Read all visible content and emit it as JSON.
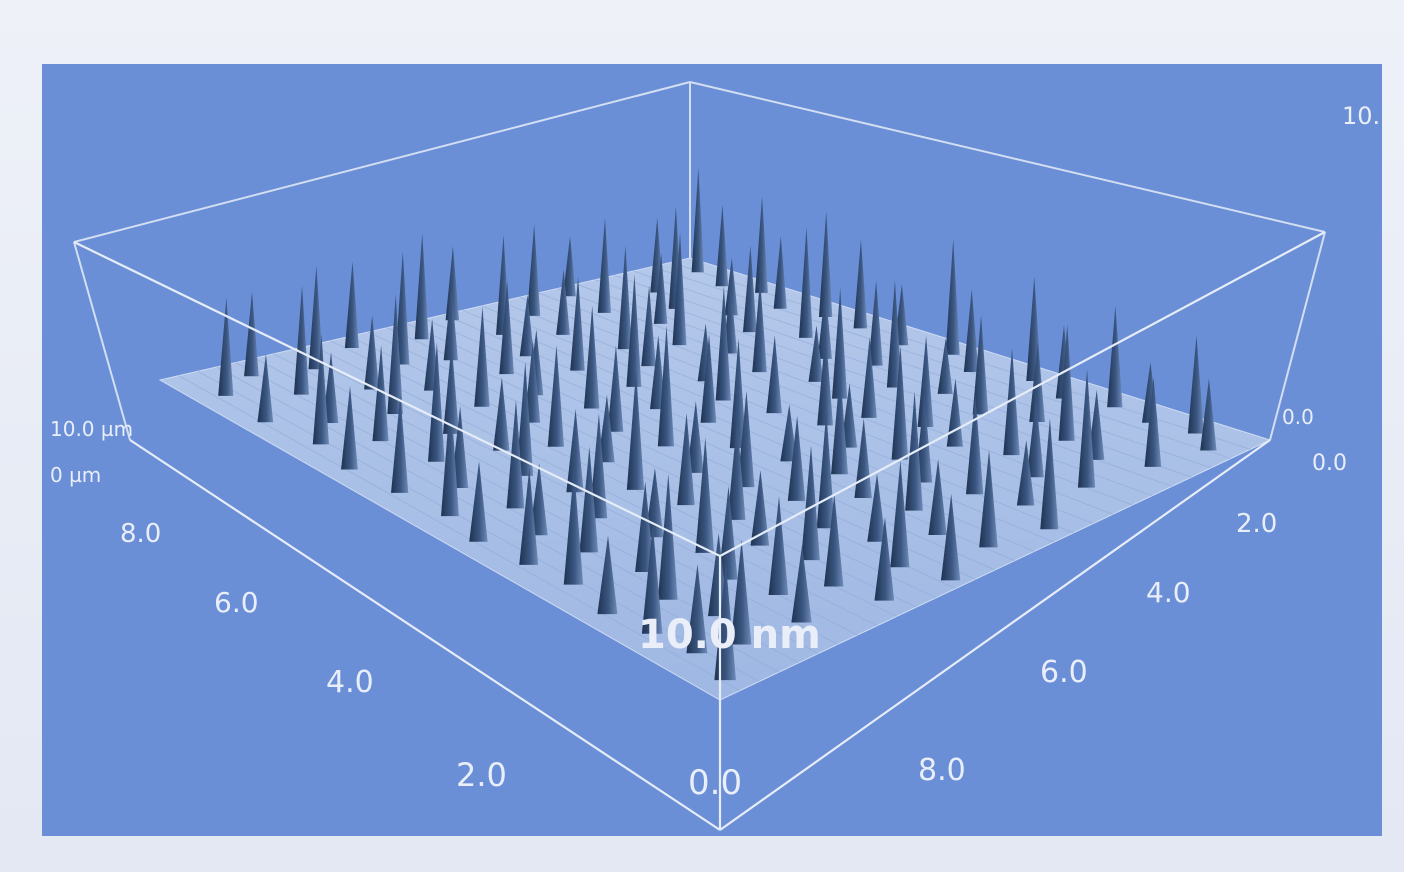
{
  "chart_data": {
    "type": "surface3d",
    "title": "",
    "colors": {
      "panel": "#6a8fd6",
      "floor": "#a7bfe6",
      "spike": "#2b4266",
      "frame_line": "#e6ecf8"
    },
    "z_axis": {
      "top_label": "10.",
      "scale_bar_label": "10.0 nm",
      "range": [
        0,
        10
      ]
    },
    "x_axis": {
      "range": [
        0,
        10
      ],
      "origin_label": "0.0",
      "tick_labels": [
        "2.0",
        "4.0",
        "6.0",
        "8.0"
      ],
      "end_labels": [
        "10.0 µm",
        "0 µm"
      ]
    },
    "y_axis": {
      "range": [
        0,
        10
      ],
      "tick_labels": [
        "2.0",
        "4.0",
        "6.0",
        "8.0"
      ],
      "end_labels": [
        "0.0",
        "0.0"
      ]
    },
    "peaks": [
      {
        "x": 0.5,
        "y": 9.6,
        "h": 9.2
      },
      {
        "x": 1.1,
        "y": 9.4,
        "h": 7.1
      },
      {
        "x": 1.6,
        "y": 9.6,
        "h": 8.4
      },
      {
        "x": 2.2,
        "y": 9.3,
        "h": 6.2
      },
      {
        "x": 2.8,
        "y": 9.5,
        "h": 9.0
      },
      {
        "x": 3.4,
        "y": 9.5,
        "h": 7.5
      },
      {
        "x": 4.2,
        "y": 9.4,
        "h": 5.1
      },
      {
        "x": 4.9,
        "y": 9.6,
        "h": 9.6
      },
      {
        "x": 5.5,
        "y": 9.3,
        "h": 6.8
      },
      {
        "x": 6.3,
        "y": 9.6,
        "h": 8.5
      },
      {
        "x": 7.0,
        "y": 9.4,
        "h": 5.9
      },
      {
        "x": 7.7,
        "y": 9.6,
        "h": 8.1
      },
      {
        "x": 8.4,
        "y": 9.5,
        "h": 4.8
      },
      {
        "x": 9.1,
        "y": 9.6,
        "h": 7.7
      },
      {
        "x": 9.6,
        "y": 9.3,
        "h": 5.6
      },
      {
        "x": 0.8,
        "y": 8.5,
        "h": 6.5
      },
      {
        "x": 1.4,
        "y": 8.2,
        "h": 8.8
      },
      {
        "x": 2.0,
        "y": 8.6,
        "h": 4.9
      },
      {
        "x": 2.6,
        "y": 8.3,
        "h": 7.3
      },
      {
        "x": 3.2,
        "y": 8.7,
        "h": 9.3
      },
      {
        "x": 3.9,
        "y": 8.3,
        "h": 5.8
      },
      {
        "x": 4.5,
        "y": 8.6,
        "h": 7.0
      },
      {
        "x": 5.2,
        "y": 8.2,
        "h": 8.7
      },
      {
        "x": 5.8,
        "y": 8.5,
        "h": 4.5
      },
      {
        "x": 6.6,
        "y": 8.3,
        "h": 7.9
      },
      {
        "x": 7.3,
        "y": 8.6,
        "h": 6.3
      },
      {
        "x": 8.0,
        "y": 8.4,
        "h": 9.1
      },
      {
        "x": 8.7,
        "y": 8.2,
        "h": 5.4
      },
      {
        "x": 9.4,
        "y": 8.5,
        "h": 6.9
      },
      {
        "x": 0.3,
        "y": 7.4,
        "h": 5.2
      },
      {
        "x": 1.0,
        "y": 7.3,
        "h": 8.1
      },
      {
        "x": 1.7,
        "y": 7.6,
        "h": 6.0
      },
      {
        "x": 2.4,
        "y": 7.2,
        "h": 9.4
      },
      {
        "x": 3.0,
        "y": 7.5,
        "h": 5.7
      },
      {
        "x": 3.7,
        "y": 7.3,
        "h": 7.6
      },
      {
        "x": 4.4,
        "y": 7.6,
        "h": 4.6
      },
      {
        "x": 5.0,
        "y": 7.4,
        "h": 8.9
      },
      {
        "x": 5.7,
        "y": 7.2,
        "h": 6.4
      },
      {
        "x": 6.4,
        "y": 7.5,
        "h": 7.2
      },
      {
        "x": 7.1,
        "y": 7.3,
        "h": 5.3
      },
      {
        "x": 7.8,
        "y": 7.6,
        "h": 8.3
      },
      {
        "x": 8.5,
        "y": 7.3,
        "h": 6.1
      },
      {
        "x": 9.2,
        "y": 7.5,
        "h": 9.0
      },
      {
        "x": 0.6,
        "y": 6.4,
        "h": 7.8
      },
      {
        "x": 1.3,
        "y": 6.2,
        "h": 5.5
      },
      {
        "x": 2.1,
        "y": 6.5,
        "h": 8.6
      },
      {
        "x": 2.7,
        "y": 6.3,
        "h": 6.6
      },
      {
        "x": 3.5,
        "y": 6.5,
        "h": 4.7
      },
      {
        "x": 4.1,
        "y": 6.2,
        "h": 9.2
      },
      {
        "x": 4.8,
        "y": 6.4,
        "h": 6.2
      },
      {
        "x": 5.5,
        "y": 6.6,
        "h": 7.4
      },
      {
        "x": 6.2,
        "y": 6.3,
        "h": 5.0
      },
      {
        "x": 6.9,
        "y": 6.5,
        "h": 8.8
      },
      {
        "x": 7.6,
        "y": 6.2,
        "h": 6.7
      },
      {
        "x": 8.3,
        "y": 6.4,
        "h": 7.5
      },
      {
        "x": 9.0,
        "y": 6.6,
        "h": 4.9
      },
      {
        "x": 9.7,
        "y": 6.3,
        "h": 8.2
      },
      {
        "x": 0.2,
        "y": 5.3,
        "h": 6.3
      },
      {
        "x": 0.9,
        "y": 5.5,
        "h": 8.4
      },
      {
        "x": 1.6,
        "y": 5.2,
        "h": 5.1
      },
      {
        "x": 2.3,
        "y": 5.4,
        "h": 7.7
      },
      {
        "x": 3.1,
        "y": 5.6,
        "h": 9.1
      },
      {
        "x": 3.8,
        "y": 5.3,
        "h": 5.9
      },
      {
        "x": 4.5,
        "y": 5.5,
        "h": 7.0
      },
      {
        "x": 5.3,
        "y": 5.2,
        "h": 8.5
      },
      {
        "x": 6.0,
        "y": 5.4,
        "h": 4.4
      },
      {
        "x": 6.7,
        "y": 5.6,
        "h": 7.9
      },
      {
        "x": 7.4,
        "y": 5.3,
        "h": 6.0
      },
      {
        "x": 8.1,
        "y": 5.5,
        "h": 8.9
      },
      {
        "x": 8.8,
        "y": 5.2,
        "h": 5.6
      },
      {
        "x": 9.5,
        "y": 5.4,
        "h": 7.1
      },
      {
        "x": 0.5,
        "y": 4.4,
        "h": 8.9
      },
      {
        "x": 1.2,
        "y": 4.2,
        "h": 6.1
      },
      {
        "x": 1.9,
        "y": 4.5,
        "h": 7.6
      },
      {
        "x": 2.6,
        "y": 4.3,
        "h": 5.3
      },
      {
        "x": 3.3,
        "y": 4.6,
        "h": 8.2
      },
      {
        "x": 4.0,
        "y": 4.3,
        "h": 6.8
      },
      {
        "x": 4.7,
        "y": 4.5,
        "h": 9.4
      },
      {
        "x": 5.5,
        "y": 4.2,
        "h": 5.5
      },
      {
        "x": 6.2,
        "y": 4.4,
        "h": 7.3
      },
      {
        "x": 6.9,
        "y": 4.6,
        "h": 6.4
      },
      {
        "x": 7.7,
        "y": 4.3,
        "h": 8.6
      },
      {
        "x": 8.4,
        "y": 4.5,
        "h": 5.0
      },
      {
        "x": 9.1,
        "y": 4.2,
        "h": 7.7
      },
      {
        "x": 9.8,
        "y": 4.4,
        "h": 6.2
      },
      {
        "x": 0.3,
        "y": 3.3,
        "h": 7.2
      },
      {
        "x": 1.0,
        "y": 3.5,
        "h": 9.3
      },
      {
        "x": 1.8,
        "y": 3.2,
        "h": 5.8
      },
      {
        "x": 2.5,
        "y": 3.4,
        "h": 8.0
      },
      {
        "x": 3.2,
        "y": 3.6,
        "h": 6.5
      },
      {
        "x": 3.9,
        "y": 3.3,
        "h": 7.9
      },
      {
        "x": 4.6,
        "y": 3.5,
        "h": 5.2
      },
      {
        "x": 5.4,
        "y": 3.2,
        "h": 9.0
      },
      {
        "x": 6.1,
        "y": 3.4,
        "h": 6.9
      },
      {
        "x": 6.8,
        "y": 3.6,
        "h": 7.4
      },
      {
        "x": 7.5,
        "y": 3.3,
        "h": 5.5
      },
      {
        "x": 8.2,
        "y": 3.5,
        "h": 8.3
      },
      {
        "x": 8.9,
        "y": 3.2,
        "h": 6.6
      },
      {
        "x": 9.6,
        "y": 3.4,
        "h": 5.9
      },
      {
        "x": 0.6,
        "y": 2.3,
        "h": 8.5
      },
      {
        "x": 1.4,
        "y": 2.5,
        "h": 6.0
      },
      {
        "x": 2.1,
        "y": 2.2,
        "h": 9.5
      },
      {
        "x": 2.9,
        "y": 2.4,
        "h": 7.1
      },
      {
        "x": 3.6,
        "y": 2.6,
        "h": 5.7
      },
      {
        "x": 4.3,
        "y": 2.3,
        "h": 8.7
      },
      {
        "x": 5.0,
        "y": 2.5,
        "h": 6.3
      },
      {
        "x": 5.7,
        "y": 2.2,
        "h": 7.8
      },
      {
        "x": 6.5,
        "y": 2.4,
        "h": 5.1
      },
      {
        "x": 7.2,
        "y": 2.6,
        "h": 8.4
      },
      {
        "x": 7.9,
        "y": 2.3,
        "h": 6.7
      },
      {
        "x": 8.6,
        "y": 2.5,
        "h": 7.0
      },
      {
        "x": 9.3,
        "y": 2.2,
        "h": 5.4
      },
      {
        "x": 0.4,
        "y": 1.3,
        "h": 6.9
      },
      {
        "x": 1.1,
        "y": 1.5,
        "h": 8.8
      },
      {
        "x": 1.9,
        "y": 1.2,
        "h": 5.6
      },
      {
        "x": 2.6,
        "y": 1.4,
        "h": 7.5
      },
      {
        "x": 3.4,
        "y": 1.6,
        "h": 9.2
      },
      {
        "x": 4.1,
        "y": 1.3,
        "h": 6.2
      },
      {
        "x": 4.9,
        "y": 1.5,
        "h": 8.1
      },
      {
        "x": 5.6,
        "y": 1.2,
        "h": 5.3
      },
      {
        "x": 6.3,
        "y": 1.4,
        "h": 7.7
      },
      {
        "x": 7.1,
        "y": 1.6,
        "h": 6.5
      },
      {
        "x": 7.8,
        "y": 1.3,
        "h": 8.9
      },
      {
        "x": 8.5,
        "y": 1.5,
        "h": 5.8
      },
      {
        "x": 9.2,
        "y": 1.2,
        "h": 7.2
      },
      {
        "x": 0.7,
        "y": 0.5,
        "h": 7.9
      },
      {
        "x": 1.5,
        "y": 0.4,
        "h": 5.4
      },
      {
        "x": 2.3,
        "y": 0.6,
        "h": 8.6
      },
      {
        "x": 3.0,
        "y": 0.4,
        "h": 6.4
      },
      {
        "x": 3.8,
        "y": 0.5,
        "h": 7.4
      },
      {
        "x": 4.6,
        "y": 0.6,
        "h": 9.1
      },
      {
        "x": 5.3,
        "y": 0.4,
        "h": 5.9
      },
      {
        "x": 6.1,
        "y": 0.5,
        "h": 7.0
      },
      {
        "x": 6.8,
        "y": 0.6,
        "h": 8.3
      },
      {
        "x": 7.6,
        "y": 0.4,
        "h": 5.5
      },
      {
        "x": 8.3,
        "y": 0.5,
        "h": 7.6
      },
      {
        "x": 9.0,
        "y": 0.6,
        "h": 6.1
      },
      {
        "x": 9.7,
        "y": 0.4,
        "h": 8.0
      }
    ]
  }
}
